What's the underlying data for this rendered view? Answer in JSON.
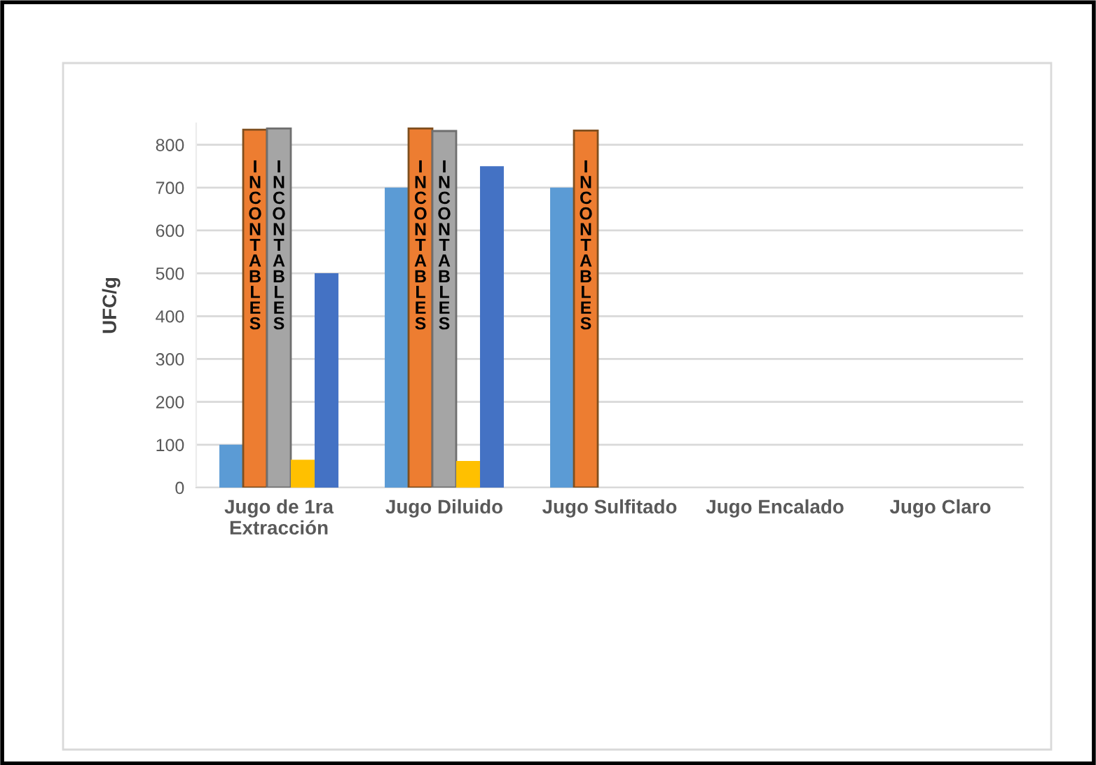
{
  "chart_data": {
    "type": "bar",
    "ylabel": "UFC/g",
    "categories": [
      "Jugo de 1ra\nExtracción",
      "Jugo Diluido",
      "Jugo Sulfitado",
      "Jugo Encalado",
      "Jugo Claro"
    ],
    "series": [
      {
        "color": "#5b9bd5",
        "values": [
          100,
          700,
          700,
          null,
          null
        ]
      },
      {
        "color": "#ed7d31",
        "values": [
          835,
          838,
          833,
          null,
          null
        ],
        "value_labels": [
          "INCONTABLES",
          "INCONTABLES",
          "INCONTABLES",
          null,
          null
        ]
      },
      {
        "color": "#a5a5a5",
        "values": [
          838,
          832,
          null,
          null,
          null
        ],
        "value_labels": [
          "INCONTABLES",
          "INCONTABLES",
          null,
          null,
          null
        ]
      },
      {
        "color": "#ffc000",
        "values": [
          65,
          62,
          null,
          null,
          null
        ]
      },
      {
        "color": "#4472c4",
        "values": [
          500,
          750,
          null,
          null,
          null
        ]
      }
    ],
    "ylim": [
      0,
      850
    ],
    "yticks": [
      0,
      100,
      200,
      300,
      400,
      500,
      600,
      700,
      800
    ],
    "grid": "y",
    "legend": false
  }
}
